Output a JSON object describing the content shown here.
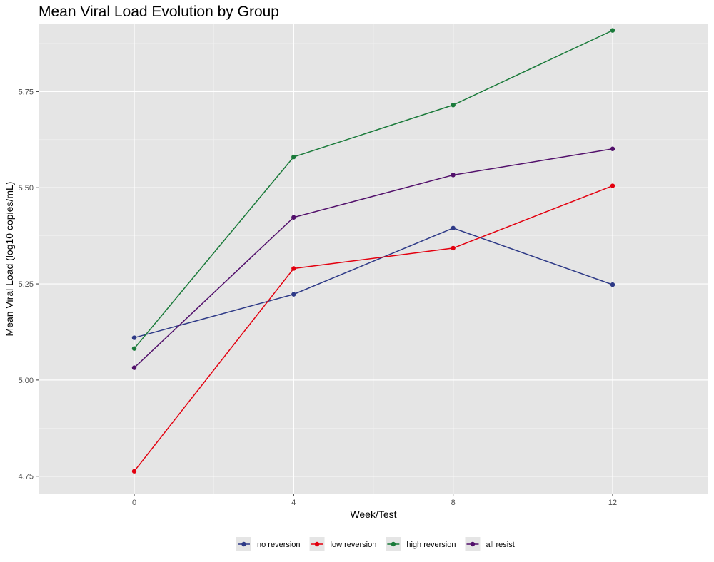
{
  "chart_data": {
    "type": "line",
    "title": "Mean Viral Load Evolution by Group",
    "xlabel": "Week/Test",
    "ylabel": "Mean Viral Load (log10 copies/mL)",
    "x": [
      0,
      4,
      8,
      12
    ],
    "x_ticks": [
      "0",
      "4",
      "8",
      "12"
    ],
    "y_ticks": [
      "4.75",
      "5.00",
      "5.25",
      "5.50",
      "5.75"
    ],
    "xlim": [
      -2.4,
      14.4
    ],
    "ylim": [
      4.705,
      5.925
    ],
    "grid": true,
    "legend_position": "bottom",
    "panel_color": "#e5e5e5",
    "series": [
      {
        "name": "no reversion",
        "color": "#2e3a87",
        "values": [
          5.11,
          5.223,
          5.395,
          5.248
        ]
      },
      {
        "name": "low reversion",
        "color": "#e3000f",
        "values": [
          4.763,
          5.29,
          5.343,
          5.505
        ]
      },
      {
        "name": "high reversion",
        "color": "#1a7a3a",
        "values": [
          5.082,
          5.58,
          5.715,
          5.909
        ]
      },
      {
        "name": "all resist",
        "color": "#52106b",
        "values": [
          5.032,
          5.423,
          5.533,
          5.601
        ]
      }
    ]
  }
}
